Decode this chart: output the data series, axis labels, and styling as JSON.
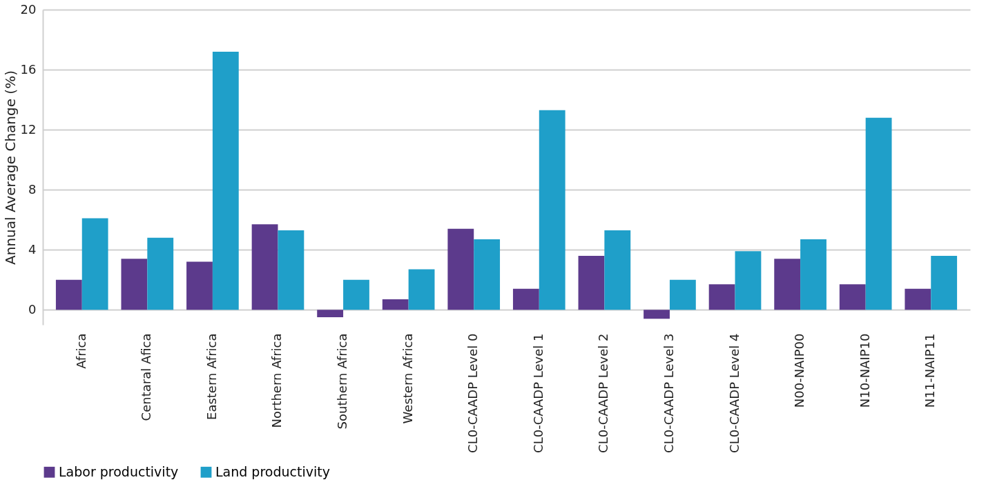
{
  "chart_data": {
    "type": "bar",
    "ylabel": "Annual Average Change (%)",
    "categories": [
      "Africa",
      "Centaral Afica",
      "Eastern Africa",
      "Northern Africa",
      "Southern Africa",
      "Western Africa",
      "CL0-CAADP Level 0",
      "CL0-CAADP Level 1",
      "CL0-CAADP Level 2",
      "CL0-CAADP Level 3",
      "CL0-CAADP Level 4",
      "N00-NAIP00",
      "N10-NAIP10",
      "N11-NAIP11"
    ],
    "series": [
      {
        "name": "Labor productivity",
        "color": "#5c3a8c",
        "values": [
          2.0,
          3.4,
          3.2,
          5.7,
          -0.5,
          0.7,
          5.4,
          1.4,
          3.6,
          -0.6,
          1.7,
          3.4,
          1.7,
          1.4
        ]
      },
      {
        "name": "Land productivity",
        "color": "#1f9fc9",
        "values": [
          6.1,
          4.8,
          17.2,
          5.3,
          2.0,
          2.7,
          4.7,
          13.3,
          5.3,
          2.0,
          3.9,
          4.7,
          12.8,
          3.6
        ]
      }
    ],
    "ylim": [
      -1,
      20
    ],
    "yticks": [
      0,
      4,
      8,
      12,
      16,
      20
    ],
    "grid": "y",
    "legend": "bottom"
  }
}
